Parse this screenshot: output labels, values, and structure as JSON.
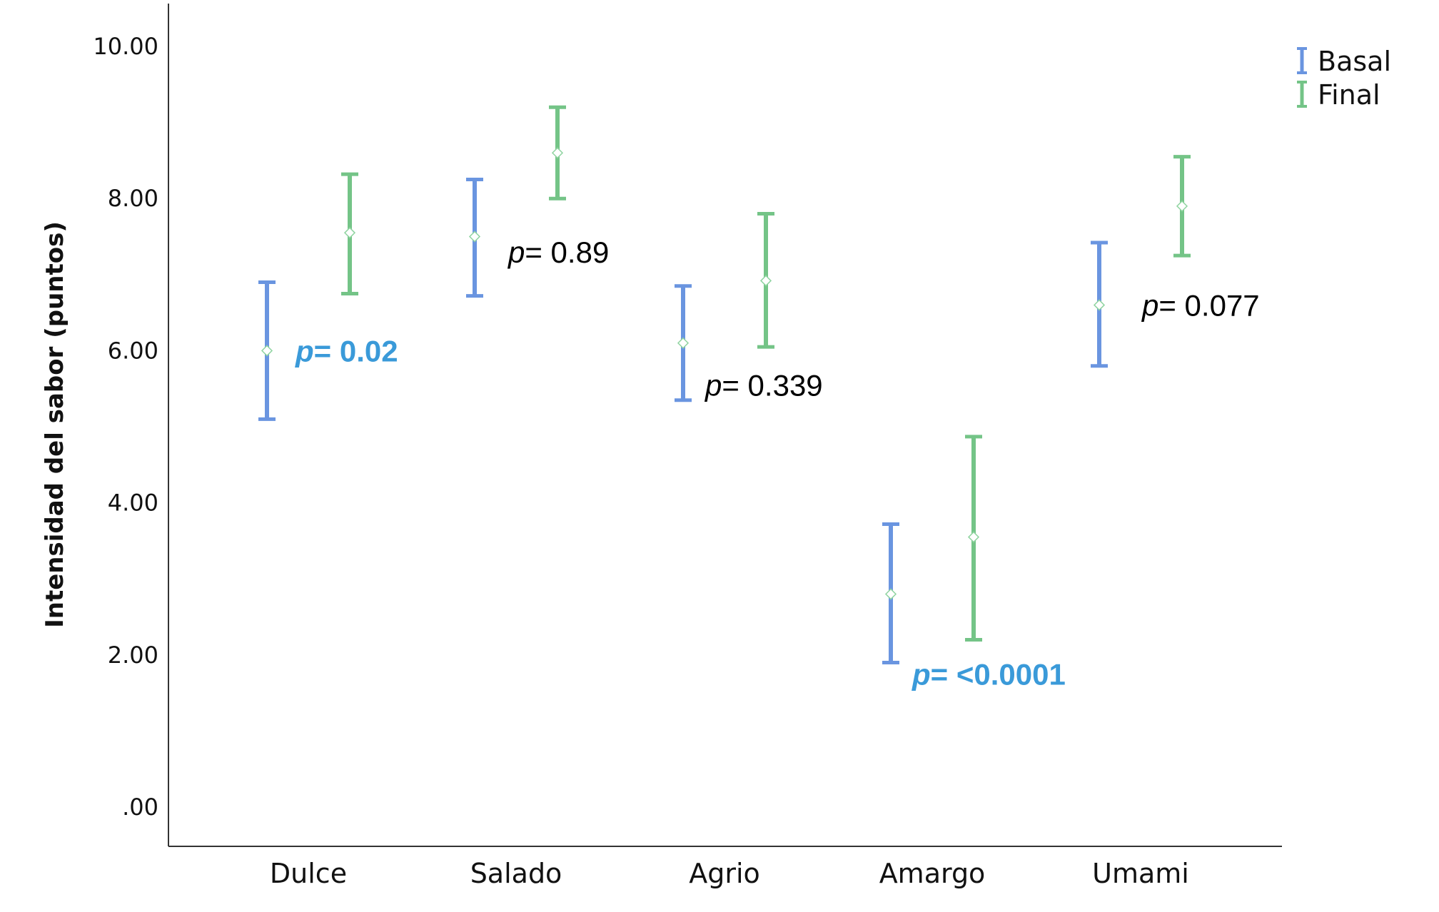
{
  "chart_data": {
    "type": "errorbar",
    "title": "",
    "xlabel": "",
    "ylabel": "Intensidad del sabor (puntos)",
    "ylim": [
      -0.5,
      10.5
    ],
    "yticks": [
      0,
      2,
      4,
      6,
      8,
      10
    ],
    "ytick_labels": [
      ".00",
      "2.00",
      "4.00",
      "6.00",
      "8.00",
      "10.00"
    ],
    "categories": [
      "Dulce",
      "Salado",
      "Agrio",
      "Amargo",
      "Umami"
    ],
    "legend_position": "top-right",
    "series": [
      {
        "name": "Basal",
        "color": "#6a95e0",
        "mean": [
          6.0,
          7.5,
          6.1,
          2.8,
          6.6
        ],
        "lower": [
          5.1,
          6.72,
          5.35,
          1.9,
          5.8
        ],
        "upper": [
          6.9,
          8.25,
          6.85,
          3.72,
          7.42
        ]
      },
      {
        "name": "Final",
        "color": "#74c487",
        "mean": [
          7.55,
          8.6,
          6.92,
          3.55,
          7.9
        ],
        "lower": [
          6.75,
          8.0,
          6.05,
          2.2,
          7.25
        ],
        "upper": [
          8.32,
          9.2,
          7.8,
          4.87,
          8.55
        ]
      }
    ],
    "annotations": [
      {
        "category": "Dulce",
        "prefix": "p",
        "text": "= 0.02",
        "significant": true,
        "y": 6.0
      },
      {
        "category": "Salado",
        "prefix": "p",
        "text": "= 0.89",
        "significant": false,
        "y": 7.3
      },
      {
        "category": "Agrio",
        "prefix": "p",
        "text": "= 0.339",
        "significant": false,
        "y": 5.55
      },
      {
        "category": "Amargo",
        "prefix": "p",
        "text": "= <0.0001",
        "significant": true,
        "y": 1.75
      },
      {
        "category": "Umami",
        "prefix": "p",
        "text": "= 0.077",
        "significant": false,
        "y": 6.6
      }
    ],
    "annotation_colors": {
      "significant": "#3a9ad9",
      "normal": "#000000"
    }
  }
}
